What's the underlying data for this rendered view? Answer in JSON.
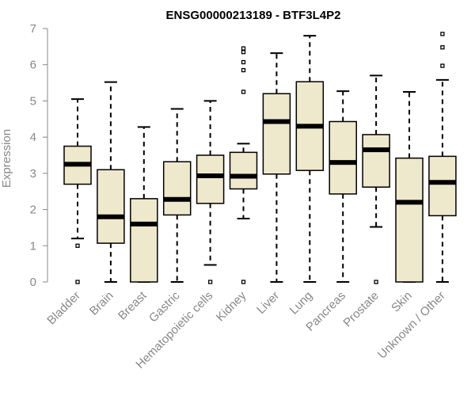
{
  "chart_data": {
    "type": "boxplot",
    "title": "ENSG00000213189 - BTF3L4P2",
    "ylabel": "Expression",
    "xlabel": "",
    "ylim": [
      0,
      7
    ],
    "yticks": [
      0,
      1,
      2,
      3,
      4,
      5,
      6,
      7
    ],
    "box_fill": "#EEE8CD",
    "categories": [
      "Bladder",
      "Brain",
      "Breast",
      "Gastric",
      "Hematopoietic cells",
      "Kidney",
      "Liver",
      "Lung",
      "Pancreas",
      "Prostate",
      "Skin",
      "Unknown / Other"
    ],
    "series": [
      {
        "name": "Bladder",
        "min": 1.2,
        "q1": 2.7,
        "median": 3.25,
        "q3": 3.75,
        "max": 5.05,
        "outliers": [
          1.0,
          0.0
        ]
      },
      {
        "name": "Brain",
        "min": 0.0,
        "q1": 1.07,
        "median": 1.8,
        "q3": 3.1,
        "max": 5.52,
        "outliers": []
      },
      {
        "name": "Breast",
        "min": 0.0,
        "q1": 0.0,
        "median": 1.6,
        "q3": 2.3,
        "max": 4.28,
        "outliers": []
      },
      {
        "name": "Gastric",
        "min": 0.0,
        "q1": 1.85,
        "median": 2.28,
        "q3": 3.32,
        "max": 4.78,
        "outliers": []
      },
      {
        "name": "Hematopoietic cells",
        "min": 0.47,
        "q1": 2.17,
        "median": 2.93,
        "q3": 3.5,
        "max": 5.0,
        "outliers": [
          0.0
        ]
      },
      {
        "name": "Kidney",
        "min": 1.75,
        "q1": 2.57,
        "median": 2.92,
        "q3": 3.58,
        "max": 3.82,
        "outliers": [
          6.45,
          6.35,
          6.07,
          5.85,
          5.25,
          0.0
        ]
      },
      {
        "name": "Liver",
        "min": 0.0,
        "q1": 2.98,
        "median": 4.43,
        "q3": 5.2,
        "max": 6.32,
        "outliers": []
      },
      {
        "name": "Lung",
        "min": 0.0,
        "q1": 3.08,
        "median": 4.3,
        "q3": 5.53,
        "max": 6.8,
        "outliers": []
      },
      {
        "name": "Pancreas",
        "min": 0.0,
        "q1": 2.43,
        "median": 3.3,
        "q3": 4.43,
        "max": 5.27,
        "outliers": []
      },
      {
        "name": "Prostate",
        "min": 1.52,
        "q1": 2.62,
        "median": 3.65,
        "q3": 4.07,
        "max": 5.7,
        "outliers": [
          0.0
        ]
      },
      {
        "name": "Skin",
        "min": 0.0,
        "q1": 0.0,
        "median": 2.2,
        "q3": 3.42,
        "max": 5.25,
        "outliers": []
      },
      {
        "name": "Unknown / Other",
        "min": 0.0,
        "q1": 1.83,
        "median": 2.75,
        "q3": 3.47,
        "max": 5.58,
        "outliers": [
          6.85,
          6.48,
          5.97
        ]
      }
    ]
  }
}
